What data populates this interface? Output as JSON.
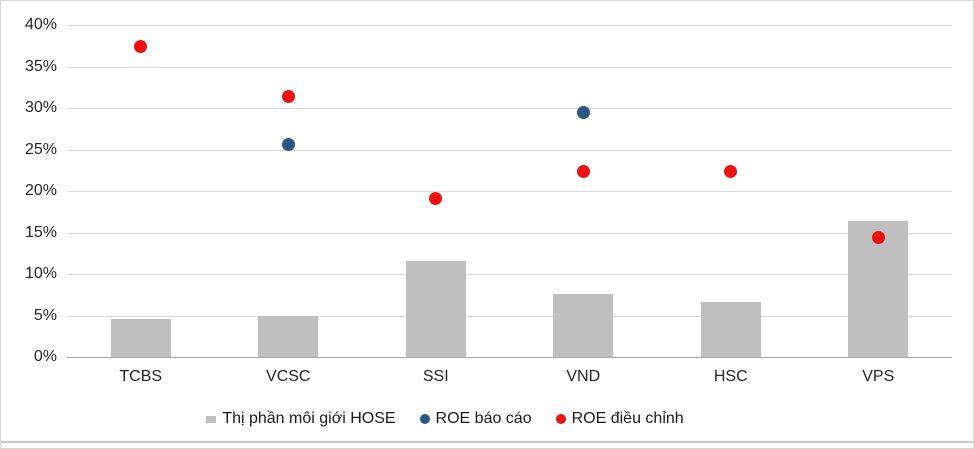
{
  "chart_data": {
    "type": "combo",
    "title": "",
    "categories": [
      "TCBS",
      "VCSC",
      "SSI",
      "VND",
      "HSC",
      "VPS"
    ],
    "series": [
      {
        "name": "Thị phần môi giới HOSE",
        "type": "bar",
        "marker": "square",
        "color": "#bfbfbf",
        "values": [
          4.6,
          4.9,
          11.6,
          7.6,
          6.6,
          16.4
        ]
      },
      {
        "name": "ROE báo cáo",
        "type": "scatter",
        "marker": "circle",
        "color": "#2a5783",
        "values": [
          null,
          25.6,
          null,
          29.4,
          null,
          null
        ]
      },
      {
        "name": "ROE điều chỉnh",
        "type": "scatter",
        "marker": "circle",
        "color": "#ee1111",
        "values": [
          37.4,
          31.4,
          19.1,
          22.4,
          22.4,
          14.4
        ]
      }
    ],
    "y_axis": {
      "min": 0,
      "max": 40,
      "step": 5,
      "unit": "%",
      "tick_labels": [
        "0%",
        "5%",
        "10%",
        "15%",
        "20%",
        "25%",
        "30%",
        "35%",
        "40%"
      ]
    },
    "grid": true,
    "legend_position": "bottom",
    "colors": {
      "bar_fill": "#bfbfbf",
      "roe_reported_dot": "#2a5783",
      "roe_adjusted_dot": "#ee1111",
      "gridline": "#d9d9d9",
      "zero_line": "#a6a6a6",
      "axis_text": "#262626",
      "frame_border": "#d9d9d9",
      "bottom_rule": "#c9c9c9"
    }
  }
}
